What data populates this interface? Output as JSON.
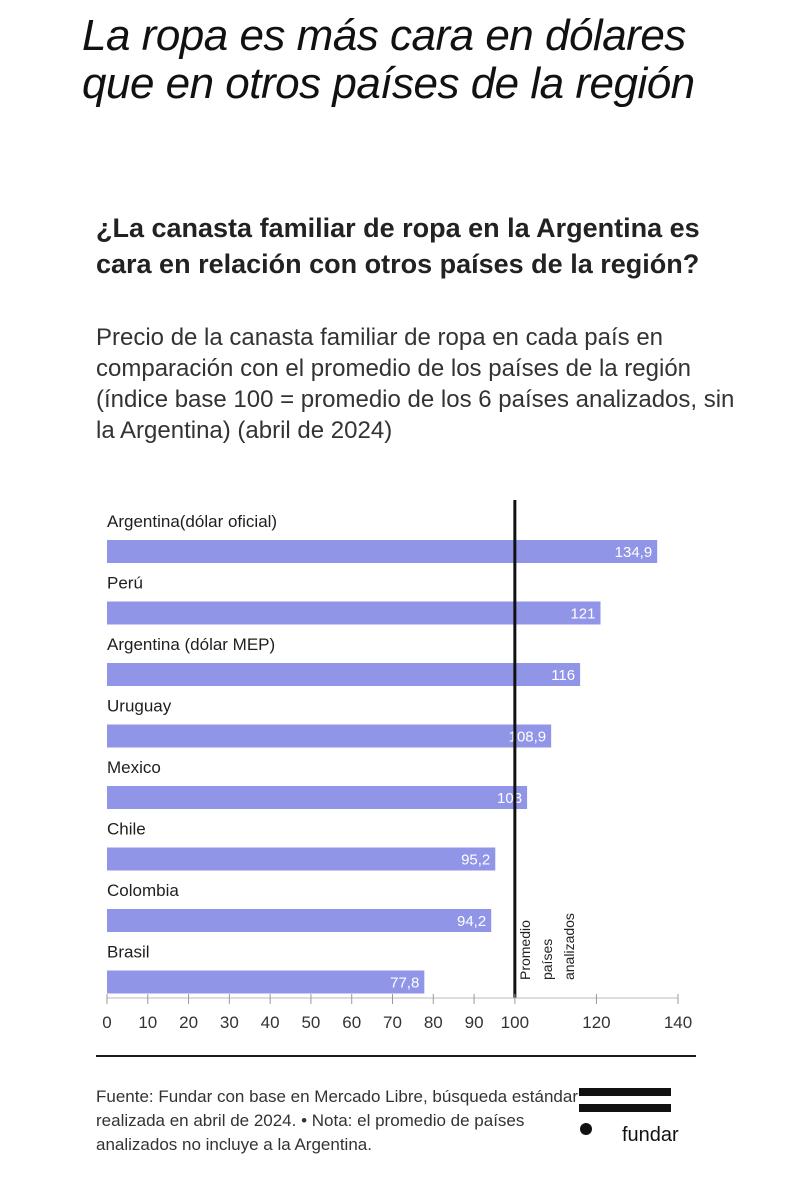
{
  "headline": "La ropa es más cara en dólares que en otros países de la región",
  "chart_data": {
    "type": "bar",
    "orientation": "horizontal",
    "title": "¿La canasta familiar de ropa en la Argentina es cara en relación con otros países de la región?",
    "subtitle": "Precio de la canasta familiar de ropa en cada país en comparación con el promedio de los países de la región (índice base 100 = promedio de los 6 países analizados, sin la Argentina) (abril de 2024)",
    "categories": [
      "Argentina(dólar oficial)",
      "Perú",
      "Argentina (dólar MEP)",
      "Uruguay",
      "Mexico",
      "Chile",
      "Colombia",
      "Brasil"
    ],
    "values": [
      134.9,
      121,
      116,
      108.9,
      103,
      95.2,
      94.2,
      77.8
    ],
    "value_labels": [
      "134,9",
      "121",
      "116",
      "108,9",
      "103",
      "95,2",
      "94,2",
      "77,8"
    ],
    "xlim": [
      0,
      140
    ],
    "xticks": [
      0,
      10,
      20,
      30,
      40,
      50,
      60,
      70,
      80,
      90,
      100,
      120,
      140
    ],
    "reference_line": {
      "value": 100,
      "label_lines": [
        "Promedio",
        "países",
        "analizados"
      ]
    },
    "bar_color": "#9195e8",
    "grid": false
  },
  "source_note": "Fuente: Fundar con base en Mercado Libre, búsqueda estándar realizada en abril de 2024. • Nota: el promedio de países analizados no incluye a la Argentina.",
  "logo": {
    "text": "fundar"
  }
}
